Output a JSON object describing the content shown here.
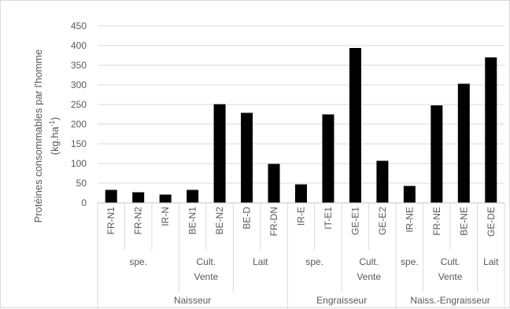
{
  "chart_data": {
    "type": "bar",
    "ylabel_line1": "Protéines consommables par l'homme",
    "ylabel_line2": "(kg.ha",
    "ylabel_sup": "-1",
    "ylabel_close": ")",
    "ylim": [
      0,
      450
    ],
    "yticks": [
      0,
      50,
      100,
      150,
      200,
      250,
      300,
      350,
      400,
      450
    ],
    "grid": true,
    "bar_color": "#000000",
    "categories": [
      "FR-N1",
      "FR-N2",
      "IR-N",
      "BE-N1",
      "BE-N2",
      "BE-D",
      "FR-DN",
      "IR-E",
      "IT-E1",
      "GE-E1",
      "GE-E2",
      "IR-NE",
      "FR-NE",
      "BE-NE",
      "GE-DE"
    ],
    "values": [
      33,
      27,
      21,
      33,
      251,
      229,
      99,
      47,
      225,
      394,
      107,
      43,
      248,
      303,
      370
    ],
    "groups_level2": [
      {
        "label": [
          "spe."
        ],
        "start": 0,
        "end": 3
      },
      {
        "label": [
          "Cult.",
          "Vente"
        ],
        "start": 3,
        "end": 5
      },
      {
        "label": [
          "Lait"
        ],
        "start": 5,
        "end": 7
      },
      {
        "label": [
          "spe."
        ],
        "start": 7,
        "end": 9
      },
      {
        "label": [
          "Cult.",
          "Vente"
        ],
        "start": 9,
        "end": 11
      },
      {
        "label": [
          "spe."
        ],
        "start": 11,
        "end": 12
      },
      {
        "label": [
          "Cult.",
          "Vente"
        ],
        "start": 12,
        "end": 14
      },
      {
        "label": [
          "Lait"
        ],
        "start": 14,
        "end": 15
      }
    ],
    "groups_level1": [
      {
        "label": "Naisseur",
        "start": 0,
        "end": 7
      },
      {
        "label": "Engraisseur",
        "start": 7,
        "end": 11
      },
      {
        "label": "Naiss.-Engraisseur",
        "start": 11,
        "end": 15
      }
    ]
  }
}
